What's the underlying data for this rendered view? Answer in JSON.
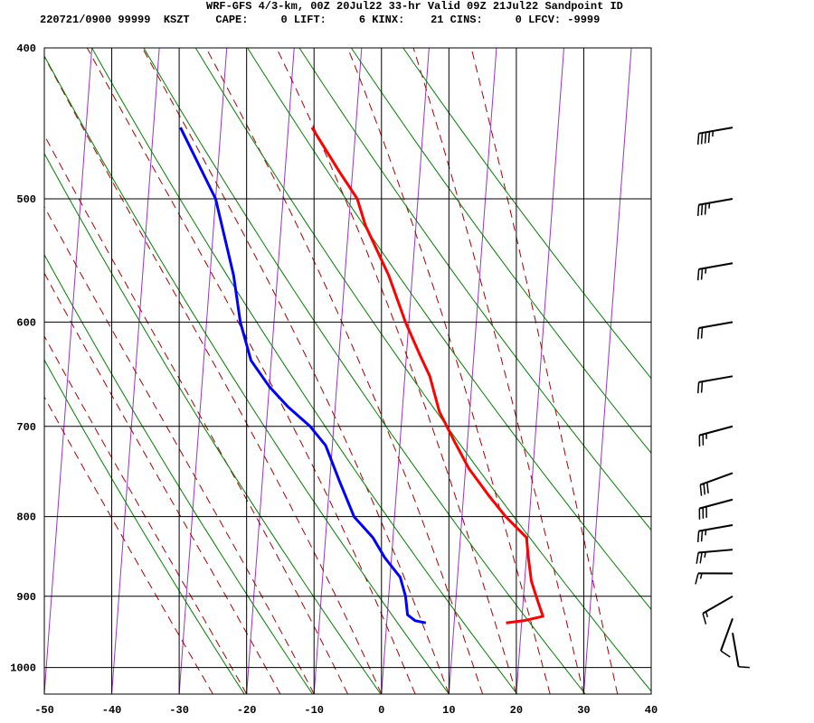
{
  "header": {
    "title": "WRF-GFS 4/3-km, 00Z 20Jul22 33-hr Valid 09Z 21Jul22 Sandpoint ID",
    "stats": "220721/0900 99999  KSZT    CAPE:     0 LIFT:     6 KINX:    21 CINS:     0 LFCV: -9999"
  },
  "chart_data": {
    "type": "skew-t",
    "title": "WRF-GFS 4/3-km, 00Z 20Jul22 33-hr Valid 09Z 21Jul22 Sandpoint ID",
    "x_axis": {
      "unit": "°C",
      "range": [
        -50,
        40
      ],
      "ticks": [
        -50,
        -40,
        -30,
        -20,
        -10,
        0,
        10,
        20,
        30,
        40
      ]
    },
    "y_axis": {
      "unit": "hPa",
      "scale": "log-pressure",
      "range": [
        1040,
        400
      ],
      "ticks": [
        400,
        500,
        600,
        700,
        800,
        900,
        1000
      ]
    },
    "grid": true,
    "series": [
      {
        "kind": "temperature",
        "color": "#ff0000",
        "points": [
          {
            "p": 936,
            "t": 17.7
          },
          {
            "p": 933,
            "t": 20.3
          },
          {
            "p": 927,
            "t": 23.1
          },
          {
            "p": 905,
            "t": 22.1
          },
          {
            "p": 880,
            "t": 21.0
          },
          {
            "p": 850,
            "t": 20.3
          },
          {
            "p": 825,
            "t": 19.8
          },
          {
            "p": 800,
            "t": 16.5
          },
          {
            "p": 775,
            "t": 13.7
          },
          {
            "p": 745,
            "t": 10.5
          },
          {
            "p": 715,
            "t": 8.0
          },
          {
            "p": 685,
            "t": 5.5
          },
          {
            "p": 650,
            "t": 3.7
          },
          {
            "p": 630,
            "t": 2.0
          },
          {
            "p": 600,
            "t": -0.5
          },
          {
            "p": 560,
            "t": -3.5
          },
          {
            "p": 520,
            "t": -7.5
          },
          {
            "p": 500,
            "t": -9.0
          },
          {
            "p": 480,
            "t": -12.0
          },
          {
            "p": 450,
            "t": -16.5
          }
        ]
      },
      {
        "kind": "dewpoint",
        "color": "#0000ff",
        "points": [
          {
            "p": 936,
            "t": 5.8
          },
          {
            "p": 933,
            "t": 4.2
          },
          {
            "p": 925,
            "t": 3.0
          },
          {
            "p": 900,
            "t": 2.5
          },
          {
            "p": 875,
            "t": 1.5
          },
          {
            "p": 850,
            "t": -1.0
          },
          {
            "p": 825,
            "t": -3.0
          },
          {
            "p": 800,
            "t": -6.0
          },
          {
            "p": 760,
            "t": -8.5
          },
          {
            "p": 720,
            "t": -11.0
          },
          {
            "p": 700,
            "t": -13.5
          },
          {
            "p": 680,
            "t": -17.0
          },
          {
            "p": 660,
            "t": -20.0
          },
          {
            "p": 635,
            "t": -23.0
          },
          {
            "p": 600,
            "t": -25.0
          },
          {
            "p": 560,
            "t": -26.5
          },
          {
            "p": 500,
            "t": -30.0
          },
          {
            "p": 450,
            "t": -36.0
          }
        ]
      }
    ],
    "isotherm_skew_C_per_decade": 17,
    "dry_adiabats_K": [
      250,
      260,
      270,
      280,
      290,
      300,
      310,
      320,
      330,
      340,
      350
    ],
    "moist_adiabats_C": [
      -25,
      -20,
      -15,
      -10,
      -5,
      0,
      5,
      10,
      15,
      20,
      25,
      30,
      35
    ],
    "mixing_ratios_gkg": [
      0.4,
      1,
      2,
      4,
      7,
      10,
      16,
      24,
      32
    ],
    "wind_barbs": [
      {
        "p": 450,
        "dir": 260,
        "kt": 45
      },
      {
        "p": 500,
        "dir": 260,
        "kt": 35
      },
      {
        "p": 550,
        "dir": 260,
        "kt": 25
      },
      {
        "p": 600,
        "dir": 260,
        "kt": 20
      },
      {
        "p": 650,
        "dir": 260,
        "kt": 20
      },
      {
        "p": 700,
        "dir": 255,
        "kt": 25
      },
      {
        "p": 750,
        "dir": 250,
        "kt": 30
      },
      {
        "p": 780,
        "dir": 255,
        "kt": 30
      },
      {
        "p": 810,
        "dir": 260,
        "kt": 25
      },
      {
        "p": 840,
        "dir": 265,
        "kt": 25
      },
      {
        "p": 870,
        "dir": 270,
        "kt": 15
      },
      {
        "p": 900,
        "dir": 240,
        "kt": 15
      },
      {
        "p": 930,
        "dir": 200,
        "kt": 10
      },
      {
        "p": 950,
        "dir": 170,
        "kt": 10
      }
    ],
    "colors": {
      "grid": "#000000",
      "isotherm_skew": "#9933cc",
      "dry_adiabat": "#008000",
      "moist_adiabat": "#aa0000",
      "wind": "#000000"
    }
  }
}
